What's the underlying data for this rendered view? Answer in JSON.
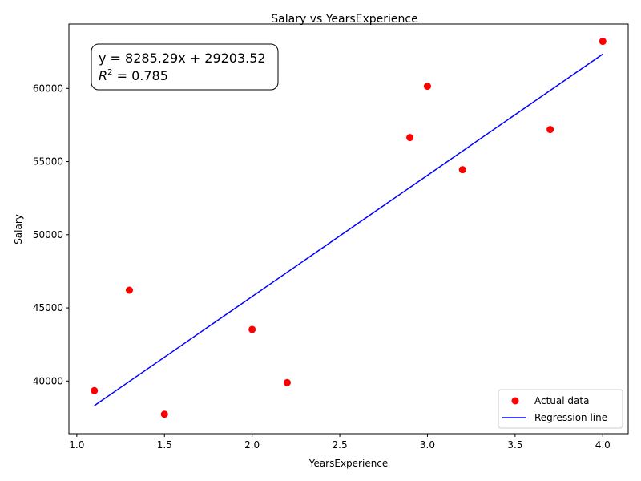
{
  "chart_data": {
    "type": "scatter",
    "title": "Salary vs YearsExperience",
    "xlabel": "YearsExperience",
    "ylabel": "Salary",
    "xlim": [
      0.955,
      4.145
    ],
    "ylim": [
      36400,
      64400
    ],
    "xticks": [
      1.0,
      1.5,
      2.0,
      2.5,
      3.0,
      3.5,
      4.0
    ],
    "xtick_labels": [
      "1.0",
      "1.5",
      "2.0",
      "2.5",
      "3.0",
      "3.5",
      "4.0"
    ],
    "yticks": [
      40000,
      45000,
      50000,
      55000,
      60000
    ],
    "ytick_labels": [
      "40000",
      "45000",
      "50000",
      "55000",
      "60000"
    ],
    "series": [
      {
        "name": "Actual data",
        "kind": "scatter",
        "color": "#ff0000",
        "x": [
          1.1,
          1.3,
          1.5,
          2.0,
          2.2,
          2.9,
          3.0,
          3.2,
          3.7,
          4.0
        ],
        "y": [
          39343,
          46205,
          37731,
          43525,
          39891,
          56642,
          60150,
          54445,
          57189,
          63218
        ]
      },
      {
        "name": "Regression line",
        "kind": "line",
        "color": "#0000ff",
        "slope": 8285.29,
        "intercept": 29203.52,
        "x": [
          1.1,
          4.0
        ]
      }
    ],
    "annotation": {
      "equation": "y = 8285.29x + 29203.52",
      "r2_label": "R",
      "r2_sup": "2",
      "r2_value": " = 0.785"
    },
    "legend": {
      "placement": "lower-right"
    },
    "grid": false
  }
}
